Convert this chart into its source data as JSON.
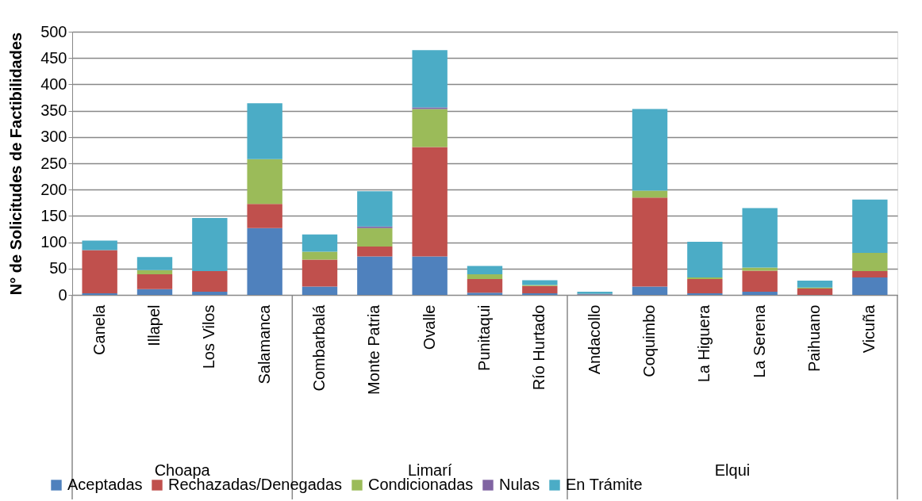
{
  "chart_data": {
    "type": "bar",
    "stacked": true,
    "ylabel": "N° de  Solicitudes de Factibilidades",
    "categories": [
      "Canela",
      "Illapel",
      "Los Vilos",
      "Salamanca",
      "Combarbalá",
      "Monte Patria",
      "Ovalle",
      "Punitaqui",
      "Río Hurtado",
      "Andacollo",
      "Coquimbo",
      "La Higuera",
      "La Serena",
      "Paihuano",
      "Vicuña"
    ],
    "annotations": [
      "Choapa",
      "Limarí",
      "Elqui"
    ],
    "series": [
      {
        "name": "Aceptadas",
        "color": "#4f81bd",
        "values": [
          3,
          11,
          6,
          127,
          16,
          73,
          73,
          4,
          3,
          1,
          16,
          3,
          6,
          0,
          33
        ]
      },
      {
        "name": "Rechazadas/Denegadas",
        "color": "#c0504d",
        "values": [
          82,
          28,
          39,
          46,
          51,
          19,
          208,
          26,
          14,
          1,
          169,
          27,
          40,
          12,
          12
        ]
      },
      {
        "name": "Condicionadas",
        "color": "#9bbb59",
        "values": [
          0,
          8,
          0,
          85,
          15,
          35,
          72,
          9,
          2,
          0,
          13,
          3,
          6,
          2,
          35
        ]
      },
      {
        "name": "Nulas",
        "color": "#8064a2",
        "values": [
          0,
          0,
          0,
          0,
          0,
          3,
          3,
          0,
          0,
          0,
          0,
          0,
          0,
          0,
          0
        ]
      },
      {
        "name": "En Trámite",
        "color": "#4bacc6",
        "values": [
          18,
          25,
          101,
          106,
          33,
          67,
          109,
          16,
          9,
          4,
          155,
          68,
          113,
          13,
          101
        ]
      }
    ],
    "ylim": [
      0,
      500
    ],
    "yticks": [
      0,
      50,
      100,
      150,
      200,
      250,
      300,
      350,
      400,
      450,
      500
    ],
    "grid": "y",
    "legend": "bottom"
  }
}
